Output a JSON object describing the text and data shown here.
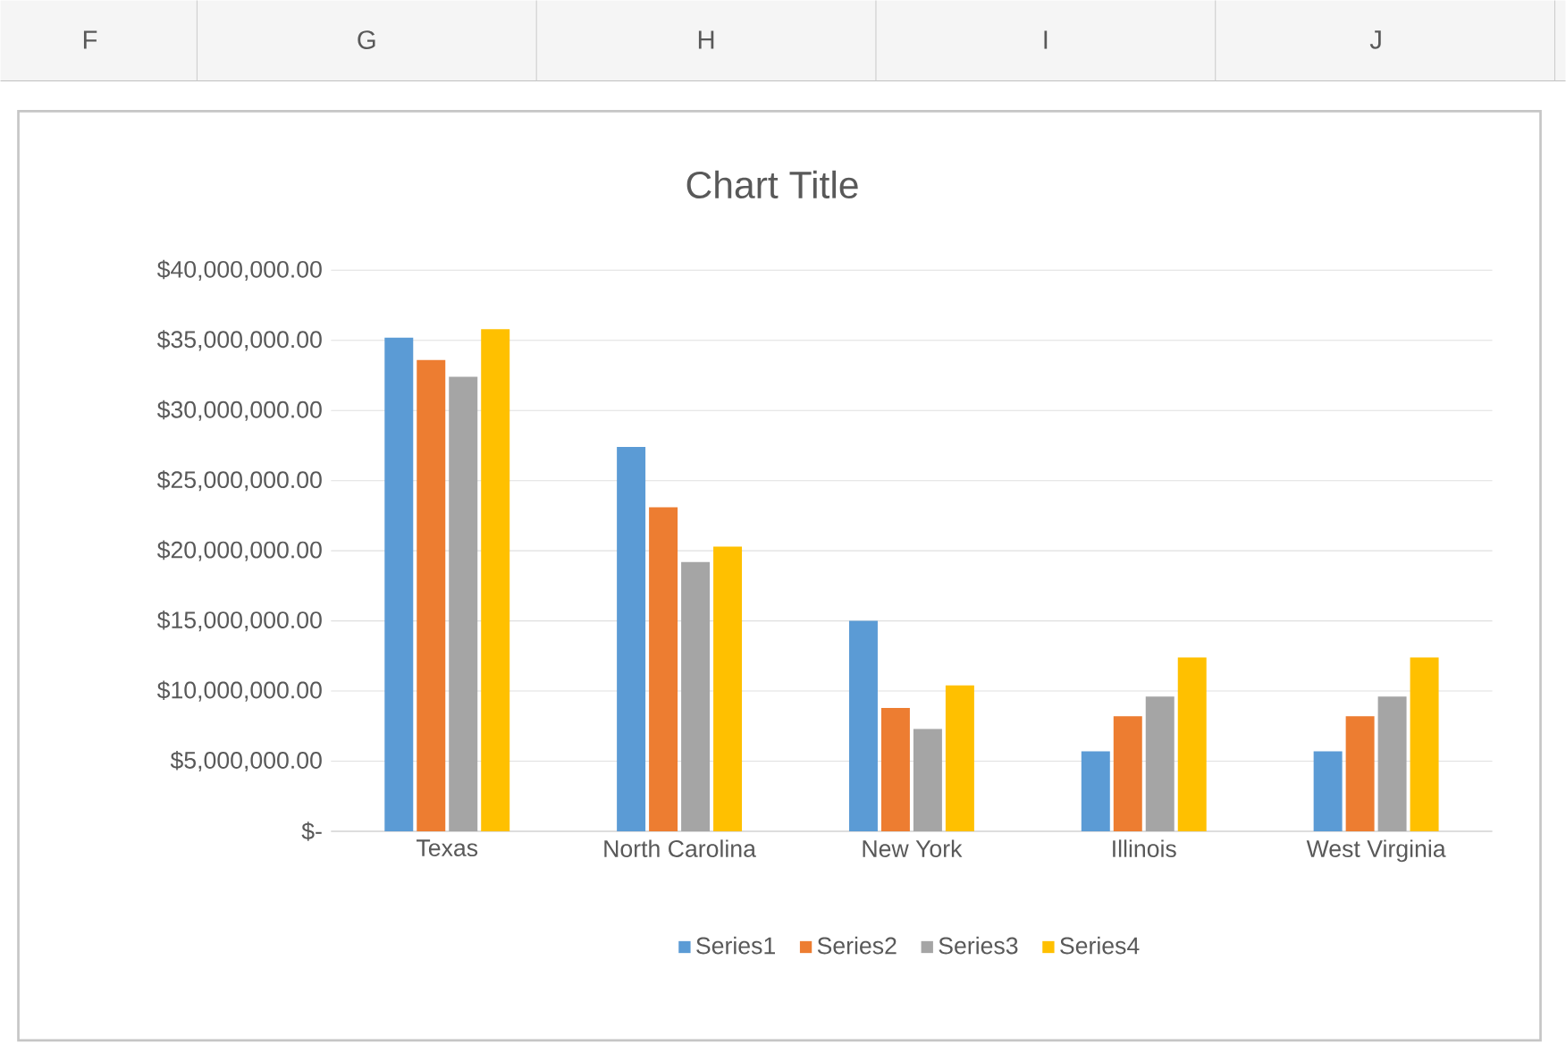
{
  "chart_data": {
    "type": "bar",
    "title": "Chart Title",
    "annotations": [
      "F",
      "G",
      "H",
      "I",
      "J"
    ],
    "categories": [
      "Texas",
      "North Carolina",
      "New York",
      "Illinois",
      "West Virginia"
    ],
    "series": [
      {
        "name": "Series1",
        "color": "#5b9bd5",
        "values": [
          35200000,
          27400000,
          15000000,
          5700000,
          5700000
        ]
      },
      {
        "name": "Series2",
        "color": "#ed7d31",
        "values": [
          33600000,
          23100000,
          8800000,
          8200000,
          8200000
        ]
      },
      {
        "name": "Series3",
        "color": "#a5a5a5",
        "values": [
          32400000,
          19200000,
          7300000,
          9600000,
          9600000
        ]
      },
      {
        "name": "Series4",
        "color": "#ffc000",
        "values": [
          35800000,
          20300000,
          10400000,
          12400000,
          12400000
        ]
      }
    ],
    "ylim": [
      0,
      40000000
    ],
    "yticks": [
      {
        "value": 0,
        "label": "$-"
      },
      {
        "value": 5000000,
        "label": "$5,000,000.00"
      },
      {
        "value": 10000000,
        "label": "$10,000,000.00"
      },
      {
        "value": 15000000,
        "label": "$15,000,000.00"
      },
      {
        "value": 20000000,
        "label": "$20,000,000.00"
      },
      {
        "value": 25000000,
        "label": "$25,000,000.00"
      },
      {
        "value": 30000000,
        "label": "$30,000,000.00"
      },
      {
        "value": 35000000,
        "label": "$35,000,000.00"
      },
      {
        "value": 40000000,
        "label": "$40,000,000.00"
      }
    ],
    "grid": "y",
    "legend": "bottom"
  }
}
